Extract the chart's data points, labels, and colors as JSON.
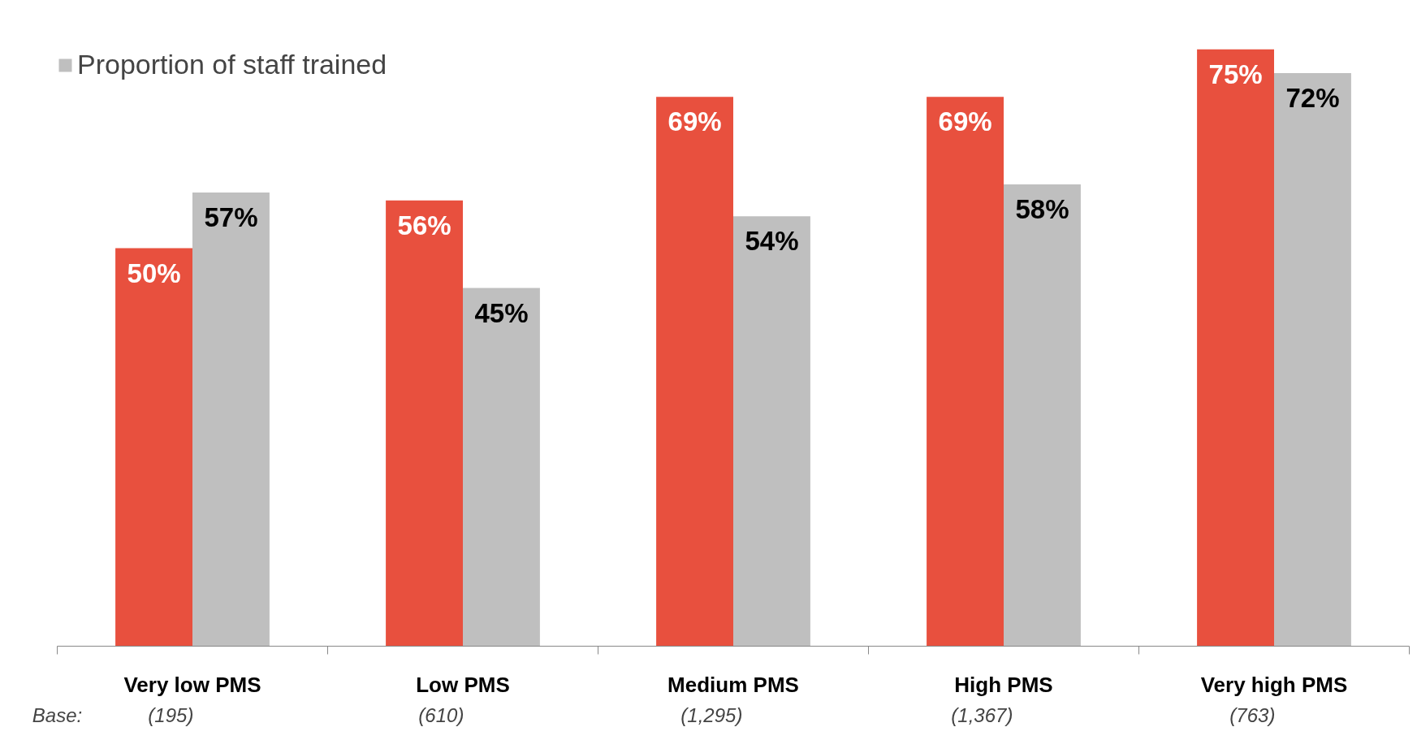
{
  "chart_data": {
    "type": "bar",
    "categories": [
      "Very low PMS",
      "Low PMS",
      "Medium PMS",
      "High PMS",
      "Very high PMS"
    ],
    "series": [
      {
        "color": "#e8503e",
        "values": [
          50,
          56,
          69,
          69,
          75
        ],
        "value_labels": [
          "50%",
          "56%",
          "69%",
          "69%",
          "75%"
        ]
      },
      {
        "name": "Proportion of staff trained",
        "color": "#bfbfbf",
        "values": [
          57,
          45,
          54,
          58,
          72
        ],
        "value_labels": [
          "57%",
          "45%",
          "54%",
          "58%",
          "72%"
        ]
      }
    ],
    "tick_labels": "x",
    "legend": "top left",
    "annotations": [
      "Base:",
      "(195)",
      "(610)",
      "(1,295)",
      "(1,367)",
      "(763)"
    ]
  }
}
